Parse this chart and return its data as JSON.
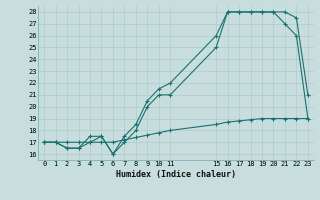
{
  "bg_color": "#c8dede",
  "grid_color": "#b0cccc",
  "line_color": "#1a7070",
  "xlabel": "Humidex (Indice chaleur)",
  "xlim": [
    -0.5,
    23.5
  ],
  "ylim": [
    15.5,
    28.5
  ],
  "yticks": [
    16,
    17,
    18,
    19,
    20,
    21,
    22,
    23,
    24,
    25,
    26,
    27,
    28
  ],
  "xticks": [
    0,
    1,
    2,
    3,
    4,
    5,
    6,
    7,
    8,
    9,
    10,
    11,
    15,
    16,
    17,
    18,
    19,
    20,
    21,
    22,
    23
  ],
  "xtick_labels": [
    "0",
    "1",
    "2",
    "3",
    "4",
    "5",
    "6",
    "7",
    "8",
    "9",
    "10",
    "11",
    "15",
    "16",
    "17",
    "18",
    "19",
    "20",
    "21",
    "22",
    "23"
  ],
  "line1_x": [
    0,
    1,
    2,
    3,
    4,
    5,
    6,
    7,
    8,
    9,
    10,
    11,
    15,
    16,
    17,
    18,
    19,
    20,
    21,
    22,
    23
  ],
  "line1_y": [
    17,
    17,
    16.5,
    16.5,
    17.5,
    17.5,
    16.0,
    17.5,
    18.5,
    20.5,
    21.5,
    22.0,
    26.0,
    28,
    28,
    28,
    28,
    28,
    27,
    26,
    19
  ],
  "line2_x": [
    0,
    1,
    2,
    3,
    4,
    5,
    6,
    7,
    8,
    9,
    10,
    11,
    15,
    16,
    17,
    18,
    19,
    20,
    21,
    22,
    23
  ],
  "line2_y": [
    17,
    17,
    16.5,
    16.5,
    17.0,
    17.5,
    16.0,
    17.0,
    18.0,
    20.0,
    21.0,
    21.0,
    25.0,
    28,
    28,
    28,
    28,
    28,
    28,
    27.5,
    21.0
  ],
  "line3_x": [
    0,
    1,
    2,
    3,
    4,
    5,
    6,
    7,
    8,
    9,
    10,
    11,
    15,
    16,
    17,
    18,
    19,
    20,
    21,
    22,
    23
  ],
  "line3_y": [
    17,
    17,
    17,
    17,
    17,
    17,
    17,
    17.2,
    17.4,
    17.6,
    17.8,
    18.0,
    18.5,
    18.7,
    18.8,
    18.9,
    19.0,
    19.0,
    19.0,
    19.0,
    19.0
  ]
}
